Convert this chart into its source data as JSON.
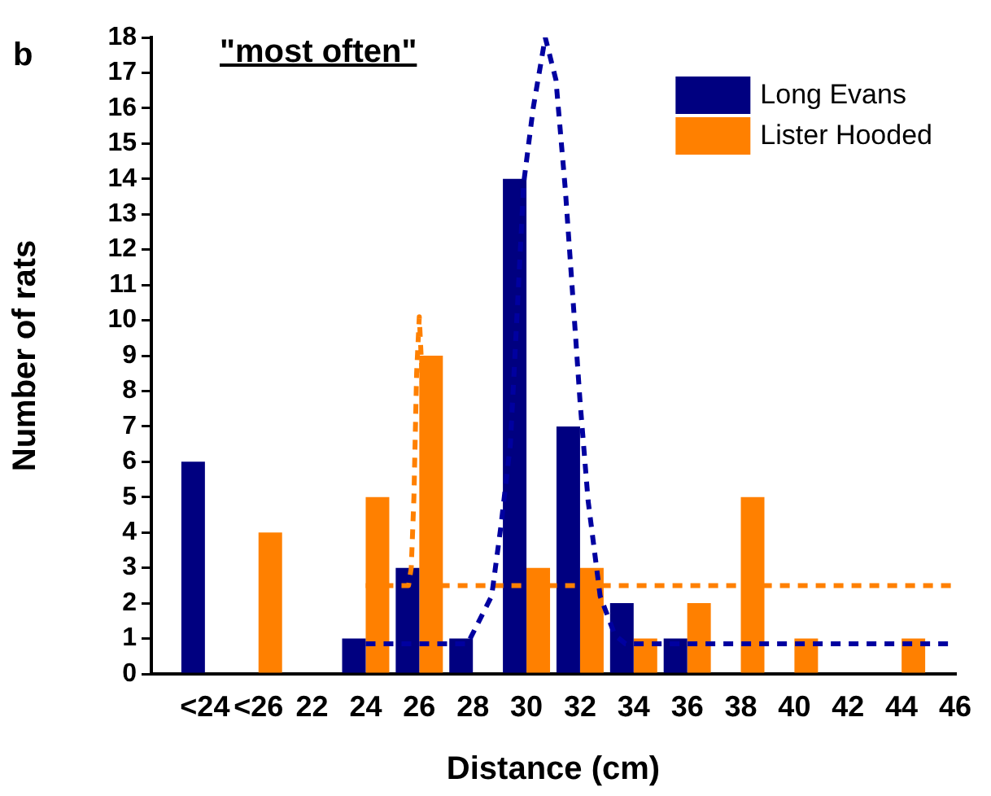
{
  "chart_data": {
    "type": "bar",
    "title": "\"most often\"",
    "xlabel": "Distance (cm)",
    "ylabel": "Number of rats",
    "annotations": [
      "b"
    ],
    "x": [
      18,
      20,
      22,
      24,
      26,
      28,
      30,
      32,
      34,
      36,
      38,
      40,
      42,
      44
    ],
    "series": [
      {
        "name": "Long Evans",
        "color": "#000080",
        "values": [
          6,
          0,
          0,
          1,
          3,
          1,
          14,
          7,
          2,
          1,
          0,
          0,
          0,
          0
        ]
      },
      {
        "name": "Lister Hooded",
        "color": "#ff8000",
        "values": [
          0,
          4,
          0,
          5,
          9,
          0,
          3,
          3,
          1,
          2,
          5,
          1,
          0,
          1
        ]
      },
      {
        "type": "line",
        "color": "#0000a0",
        "line_style": "dashed",
        "x": [
          24,
          27.8,
          28.7,
          29.05,
          29.4,
          29.9,
          30.25,
          30.7,
          31.1,
          31.45,
          31.8,
          32.0,
          32.3,
          32.75,
          33.3,
          33.7,
          46
        ],
        "values": [
          0.85,
          0.85,
          2.2,
          4.2,
          6.5,
          13.9,
          16,
          18,
          16.8,
          13.7,
          9.9,
          7.7,
          4.9,
          2.2,
          1.1,
          0.85,
          0.85
        ]
      },
      {
        "type": "line",
        "color": "#ff8000",
        "line_style": "dashed",
        "x": [
          24,
          25.6,
          25.7,
          25.8,
          25.9,
          26.0,
          26.1,
          26.2,
          26.3,
          26.4,
          46
        ],
        "values": [
          2.5,
          2.5,
          3,
          5,
          8.5,
          10.1,
          8.5,
          5,
          3,
          2.5,
          2.5
        ]
      }
    ],
    "xlim": [
      16,
      46
    ],
    "xticks": [
      {
        "value": 18,
        "label": "<24"
      },
      {
        "value": 20,
        "label": "<26"
      },
      22,
      24,
      26,
      28,
      30,
      32,
      34,
      36,
      38,
      40,
      42,
      44,
      46
    ],
    "ylim": [
      0,
      18
    ],
    "yticks": [
      0,
      1,
      2,
      3,
      4,
      5,
      6,
      7,
      8,
      9,
      10,
      11,
      12,
      13,
      14,
      15,
      16,
      17,
      18
    ],
    "legend": "top right",
    "grid": false
  }
}
